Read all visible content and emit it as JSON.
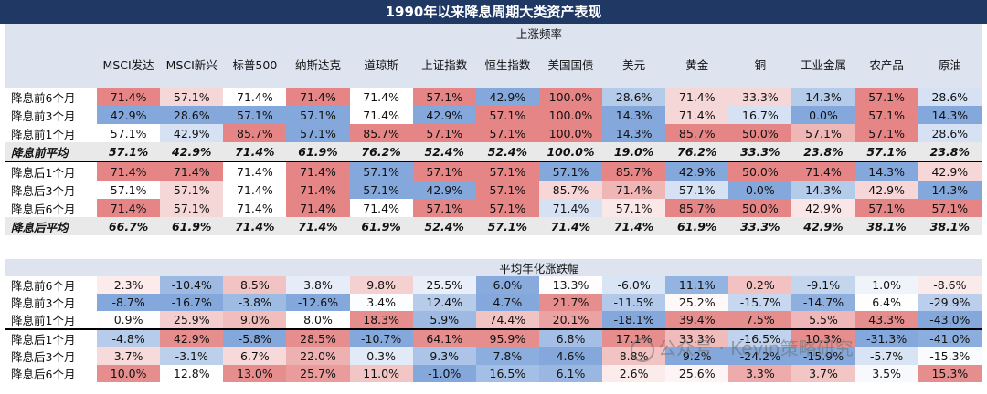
{
  "title": "1990年以来降息周期大类资产表现",
  "section1_title": "上涨频率",
  "section2_title": "平均年化涨跌幅",
  "columns": [
    "MSCI发达",
    "MSCI新兴",
    "标普500",
    "纳斯达克",
    "道琼斯",
    "上证指数",
    "恒生指数",
    "美国国债",
    "美元",
    "黄金",
    "铜",
    "工业金属",
    "农产品",
    "原油"
  ],
  "freq_rows": [
    {
      "label": "降息前6个月",
      "values": [
        "71.4%",
        "57.1%",
        "71.4%",
        "71.4%",
        "71.4%",
        "57.1%",
        "42.9%",
        "100.0%",
        "28.6%",
        "71.4%",
        "33.3%",
        "14.3%",
        "57.1%",
        "28.6%"
      ]
    },
    {
      "label": "降息前3个月",
      "values": [
        "42.9%",
        "28.6%",
        "57.1%",
        "57.1%",
        "71.4%",
        "42.9%",
        "57.1%",
        "100.0%",
        "14.3%",
        "71.4%",
        "16.7%",
        "0.0%",
        "57.1%",
        "14.3%"
      ]
    },
    {
      "label": "降息前1个月",
      "values": [
        "57.1%",
        "42.9%",
        "85.7%",
        "57.1%",
        "85.7%",
        "57.1%",
        "57.1%",
        "100.0%",
        "14.3%",
        "85.7%",
        "50.0%",
        "57.1%",
        "57.1%",
        "28.6%"
      ]
    },
    {
      "label": "降息前平均",
      "values": [
        "57.1%",
        "42.9%",
        "71.4%",
        "61.9%",
        "76.2%",
        "52.4%",
        "52.4%",
        "100.0%",
        "19.0%",
        "76.2%",
        "33.3%",
        "23.8%",
        "57.1%",
        "23.8%"
      ]
    },
    {
      "label": "降息后1个月",
      "values": [
        "71.4%",
        "71.4%",
        "71.4%",
        "71.4%",
        "57.1%",
        "57.1%",
        "57.1%",
        "57.1%",
        "85.7%",
        "42.9%",
        "50.0%",
        "71.4%",
        "14.3%",
        "42.9%"
      ]
    },
    {
      "label": "降息后3个月",
      "values": [
        "57.1%",
        "57.1%",
        "71.4%",
        "71.4%",
        "57.1%",
        "42.9%",
        "57.1%",
        "85.7%",
        "71.4%",
        "57.1%",
        "0.0%",
        "14.3%",
        "42.9%",
        "14.3%"
      ]
    },
    {
      "label": "降息后6个月",
      "values": [
        "71.4%",
        "57.1%",
        "71.4%",
        "71.4%",
        "71.4%",
        "57.1%",
        "57.1%",
        "71.4%",
        "57.1%",
        "85.7%",
        "50.0%",
        "42.9%",
        "57.1%",
        "57.1%"
      ]
    },
    {
      "label": "降息后平均",
      "values": [
        "66.7%",
        "61.9%",
        "71.4%",
        "71.4%",
        "61.9%",
        "52.4%",
        "57.1%",
        "71.4%",
        "71.4%",
        "61.9%",
        "33.3%",
        "42.9%",
        "38.1%",
        "38.1%"
      ]
    }
  ],
  "ret_rows": [
    {
      "label": "降息前6个月",
      "values": [
        "2.3%",
        "-10.4%",
        "8.5%",
        "3.8%",
        "9.8%",
        "25.5%",
        "6.0%",
        "13.3%",
        "-6.0%",
        "11.1%",
        "0.2%",
        "-9.1%",
        "1.0%",
        "-8.6%"
      ]
    },
    {
      "label": "降息前3个月",
      "values": [
        "-8.7%",
        "-16.7%",
        "-3.8%",
        "-12.6%",
        "3.4%",
        "12.4%",
        "4.7%",
        "21.7%",
        "-11.5%",
        "25.2%",
        "-15.7%",
        "-14.7%",
        "6.4%",
        "-29.9%"
      ]
    },
    {
      "label": "降息前1个月",
      "values": [
        "0.9%",
        "25.9%",
        "9.0%",
        "8.0%",
        "18.3%",
        "5.9%",
        "74.4%",
        "20.1%",
        "-18.1%",
        "39.4%",
        "7.5%",
        "5.5%",
        "43.3%",
        "-43.0%"
      ]
    },
    {
      "label": "降息后1个月",
      "values": [
        "-4.8%",
        "42.9%",
        "-5.8%",
        "28.5%",
        "-10.7%",
        "64.1%",
        "95.9%",
        "6.8%",
        "17.1%",
        "33.3%",
        "-16.5%",
        "10.3%",
        "-31.3%",
        "-41.0%"
      ]
    },
    {
      "label": "降息后3个月",
      "values": [
        "3.7%",
        "-3.1%",
        "6.7%",
        "22.0%",
        "0.3%",
        "9.3%",
        "7.8%",
        "4.6%",
        "8.8%",
        "9.2%",
        "-24.2%",
        "-15.9%",
        "-5.7%",
        "-15.3%"
      ]
    },
    {
      "label": "降息后6个月",
      "values": [
        "10.0%",
        "12.8%",
        "13.0%",
        "25.7%",
        "11.0%",
        "-1.0%",
        "16.5%",
        "6.1%",
        "2.6%",
        "25.6%",
        "3.3%",
        "3.7%",
        "3.5%",
        "15.3%"
      ]
    }
  ],
  "watermark": "公众号 · Kevin策略研究",
  "colors": {
    "header_bg": "#1f3864",
    "subheader_bg": "#dde4ef",
    "positive": "#e07070",
    "negative": "#5b8bd0",
    "avg_row_bg": "#e9e9e9"
  }
}
